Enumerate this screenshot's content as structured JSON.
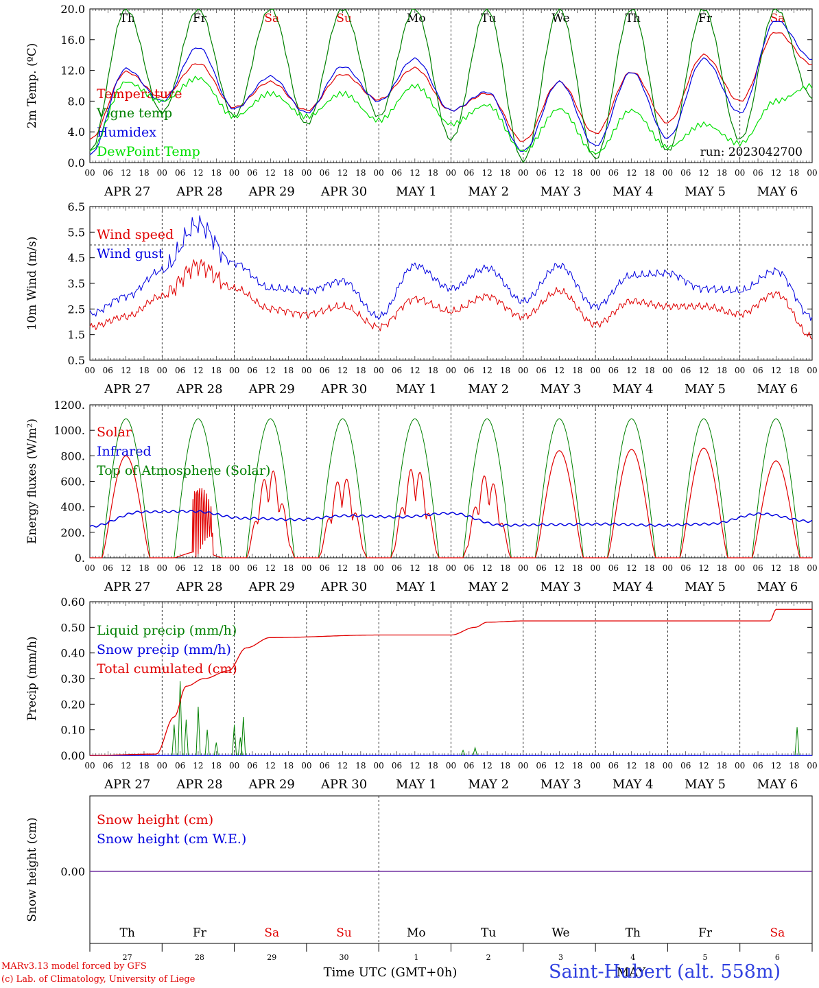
{
  "chart_data": [
    {
      "type": "line",
      "ylabel": "2m Temp. (ºC)",
      "ylim": [
        0,
        20
      ],
      "yticks": [
        "0.0",
        "4.0",
        "8.0",
        "12.0",
        "16.0",
        "20.0"
      ],
      "legend": [
        {
          "label": "Temperature",
          "color": "#e00000"
        },
        {
          "label": "Vigne temp",
          "color": "#008000"
        },
        {
          "label": "Humidex",
          "color": "#0000e0"
        },
        {
          "label": "DewPoint Temp",
          "color": "#00e000"
        }
      ],
      "run_label": "run: 2023042700",
      "day_abbrevs": [
        "Th",
        "Fr",
        "Sa",
        "Su",
        "Mo",
        "Tu",
        "We",
        "Th",
        "Fr",
        "Sa"
      ],
      "x_hours": [
        0,
        12,
        24,
        36,
        48,
        60,
        72,
        84,
        96,
        108,
        120,
        132,
        144,
        156,
        168,
        180,
        192,
        204,
        216,
        228,
        240
      ],
      "series": [
        {
          "name": "Temperature",
          "color": "#e00000",
          "values": [
            3.0,
            11.8,
            8.5,
            12.9,
            7.2,
            10.5,
            6.8,
            11.5,
            8.2,
            12.3,
            6.8,
            9.0,
            2.8,
            10.5,
            3.8,
            11.8,
            5.2,
            14.0,
            8.0,
            17.0,
            12.8
          ]
        },
        {
          "name": "Vigne temp",
          "color": "#008000",
          "values": [
            1.5,
            20.0,
            6.5,
            20.0,
            6.0,
            20.0,
            5.0,
            20.0,
            6.0,
            20.0,
            3.0,
            20.0,
            0.2,
            20.0,
            0.5,
            20.0,
            1.5,
            20.0,
            3.0,
            20.0,
            8.5
          ]
        },
        {
          "name": "Humidex",
          "color": "#0000e0",
          "values": [
            1.0,
            12.2,
            8.0,
            15.0,
            7.0,
            11.2,
            6.5,
            12.5,
            8.0,
            13.5,
            6.8,
            9.2,
            1.5,
            10.5,
            2.2,
            11.8,
            3.2,
            13.5,
            6.5,
            18.5,
            13.5
          ]
        },
        {
          "name": "DewPoint Temp",
          "color": "#00e000",
          "values": [
            1.5,
            10.5,
            8.0,
            11.0,
            6.0,
            9.0,
            6.0,
            9.0,
            5.5,
            10.0,
            5.0,
            7.5,
            1.5,
            7.0,
            1.2,
            6.8,
            2.0,
            5.0,
            2.5,
            8.0,
            10.0
          ]
        }
      ]
    },
    {
      "type": "line",
      "ylabel": "10m Wind (m/s)",
      "ylim": [
        0.5,
        6.5
      ],
      "yticks": [
        "0.5",
        "1.5",
        "2.5",
        "3.5",
        "4.5",
        "5.5",
        "6.5"
      ],
      "legend": [
        {
          "label": "Wind speed",
          "color": "#e00000"
        },
        {
          "label": "Wind gust",
          "color": "#0000e0"
        }
      ],
      "x_hours": [
        0,
        12,
        24,
        36,
        48,
        60,
        72,
        84,
        96,
        108,
        120,
        132,
        144,
        156,
        168,
        180,
        192,
        204,
        216,
        228,
        240
      ],
      "series": [
        {
          "name": "Wind speed",
          "color": "#e00000",
          "values": [
            1.8,
            2.2,
            3.0,
            4.2,
            3.3,
            2.5,
            2.3,
            2.6,
            1.8,
            2.9,
            2.4,
            3.0,
            2.2,
            3.2,
            1.9,
            2.8,
            2.6,
            2.6,
            2.3,
            3.1,
            1.4
          ]
        },
        {
          "name": "Wind gust",
          "color": "#0000e0",
          "values": [
            2.3,
            3.0,
            4.0,
            5.8,
            4.3,
            3.3,
            3.2,
            3.6,
            2.2,
            4.2,
            3.3,
            4.1,
            2.8,
            4.2,
            2.6,
            3.8,
            3.9,
            3.3,
            3.2,
            4.0,
            2.2
          ]
        }
      ]
    },
    {
      "type": "line",
      "ylabel": "Energy fluxes (W/m²)",
      "ylim": [
        0,
        1200
      ],
      "yticks": [
        "0.",
        "200.",
        "400.",
        "600.",
        "800.",
        "1000.",
        "1200."
      ],
      "legend": [
        {
          "label": "Solar",
          "color": "#e00000"
        },
        {
          "label": "Infrared",
          "color": "#0000e0"
        },
        {
          "label": "Top of Atmosphere (Solar)",
          "color": "#008000"
        }
      ],
      "toa_peak": 1090,
      "solar_peaks": [
        800,
        600,
        700,
        650,
        730,
        660,
        840,
        850,
        860,
        760
      ],
      "infrared_values": [
        245,
        360,
        365,
        310,
        300,
        330,
        320,
        350,
        255,
        260,
        265,
        255,
        265,
        345,
        285
      ]
    },
    {
      "type": "line",
      "ylabel": "Precip (mm/h)",
      "ylim": [
        0,
        0.6
      ],
      "yticks": [
        "0.00",
        "0.10",
        "0.20",
        "0.30",
        "0.40",
        "0.50",
        "0.60"
      ],
      "legend": [
        {
          "label": "Liquid precip (mm/h)",
          "color": "#008000"
        },
        {
          "label": "Snow precip (mm/h)",
          "color": "#0000e0"
        },
        {
          "label": "Total cumulated (cm)",
          "color": "#e00000"
        }
      ],
      "cumulative": {
        "x_hours": [
          0,
          22,
          28,
          32,
          38,
          46,
          52,
          60,
          96,
          120,
          128,
          132,
          144,
          216,
          226,
          228,
          240
        ],
        "values": [
          0,
          0.005,
          0.15,
          0.27,
          0.3,
          0.33,
          0.42,
          0.46,
          0.47,
          0.47,
          0.5,
          0.52,
          0.525,
          0.525,
          0.525,
          0.57,
          0.57
        ]
      },
      "liquid_spikes": [
        {
          "hour": 28,
          "value": 0.12
        },
        {
          "hour": 30,
          "value": 0.29
        },
        {
          "hour": 32,
          "value": 0.14
        },
        {
          "hour": 36,
          "value": 0.19
        },
        {
          "hour": 39,
          "value": 0.1
        },
        {
          "hour": 42,
          "value": 0.05
        },
        {
          "hour": 48,
          "value": 0.12
        },
        {
          "hour": 50,
          "value": 0.07
        },
        {
          "hour": 51,
          "value": 0.15
        },
        {
          "hour": 124,
          "value": 0.02
        },
        {
          "hour": 128,
          "value": 0.03
        },
        {
          "hour": 235,
          "value": 0.11
        }
      ]
    },
    {
      "type": "line",
      "ylabel": "Snow height (cm)",
      "yticks": [
        "0.00"
      ],
      "legend": [
        {
          "label": "Snow height (cm)",
          "color": "#e00000"
        },
        {
          "label": "Snow height (cm W.E.)",
          "color": "#0000e0"
        }
      ],
      "value": 0.0,
      "day_labels": [
        "Th",
        "Fr",
        "Sa",
        "Su",
        "Mo",
        "Tu",
        "We",
        "Th",
        "Fr",
        "Sa"
      ],
      "day_numbers": [
        "27",
        "28",
        "29",
        "30",
        "1",
        "2",
        "3",
        "4",
        "5",
        "6"
      ],
      "xlabel": "Time UTC (GMT+0h)",
      "month_label": "MAY"
    }
  ],
  "axis": {
    "hour_ticks": [
      "00",
      "06",
      "12",
      "18"
    ],
    "date_labels": [
      "APR 27",
      "APR 28",
      "APR 29",
      "APR 30",
      "MAY  1",
      "MAY  2",
      "MAY  3",
      "MAY  4",
      "MAY  5",
      "MAY  6"
    ],
    "weekend_days": [
      2,
      3,
      9
    ]
  },
  "colors": {
    "red": "#e00000",
    "green": "#008000",
    "blue": "#0000e0",
    "lightgreen": "#00e000",
    "purple": "#7030a0"
  },
  "footer": {
    "model": "MARv3.13 model forced by GFS",
    "lab": "(c) Lab. of Climatology, University of Liege",
    "station": "Saint-Hubert (alt. 558m)"
  }
}
